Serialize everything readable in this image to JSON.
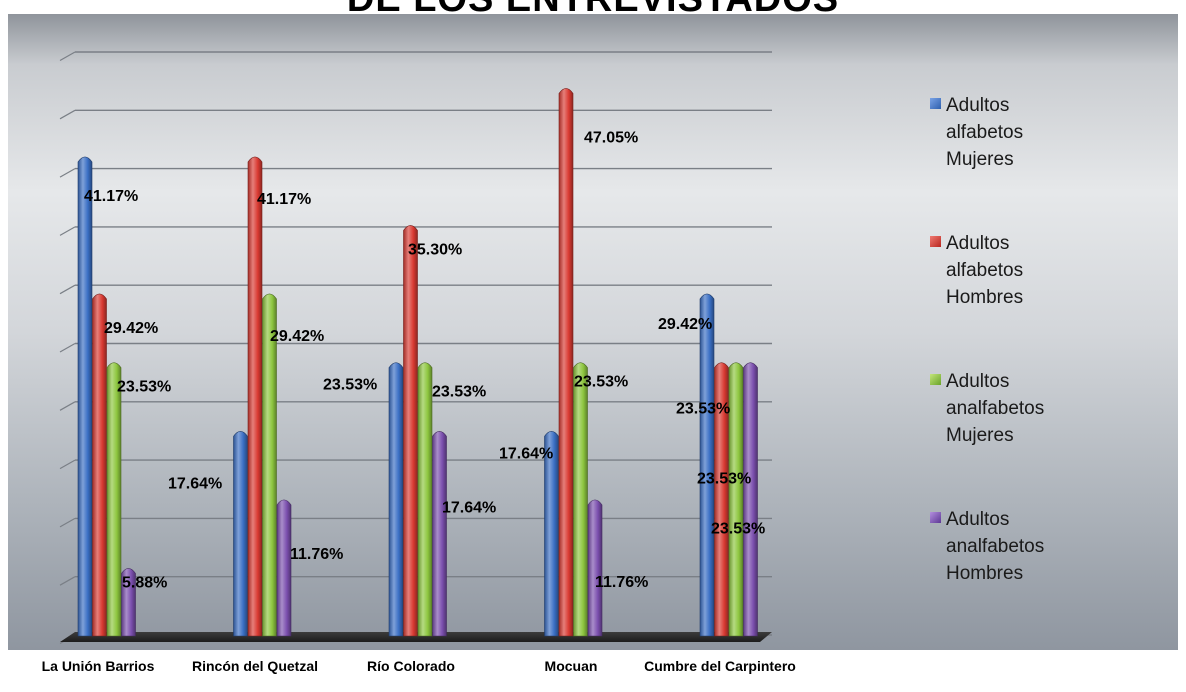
{
  "chart_data": {
    "type": "bar",
    "title": "DE LOS ENTREVISTADOS",
    "categories": [
      "La Unión Barrios",
      "Rincón del Quetzal",
      "Río Colorado",
      "Mocuan",
      "Cumbre del Carpintero"
    ],
    "series": [
      {
        "name": "Adultos alfabetos Mujeres",
        "values": [
          41.17,
          17.64,
          23.53,
          17.64,
          29.42
        ],
        "labels": [
          "41.17%",
          "17.64%",
          "23.53%",
          "17.64%",
          "29.42%"
        ],
        "color": "#3a6fc4"
      },
      {
        "name": "Adultos alfabetos Hombres",
        "values": [
          29.42,
          41.17,
          35.3,
          47.05,
          23.53
        ],
        "labels": [
          "29.42%",
          "41.17%",
          "35.30%",
          "47.05%",
          "23.53%"
        ],
        "color": "#d93a32"
      },
      {
        "name": "Adultos analfabetos Mujeres",
        "values": [
          23.53,
          29.42,
          23.53,
          23.53,
          23.53
        ],
        "labels": [
          "23.53%",
          "29.42%",
          "23.53%",
          "23.53%",
          "23.53%"
        ],
        "color": "#8dc63f"
      },
      {
        "name": "Adultos analfabetos Hombres",
        "values": [
          5.88,
          11.76,
          17.64,
          11.76,
          23.53
        ],
        "labels": [
          "5.88%",
          "11.76%",
          "17.64%",
          "11.76%",
          "23.53%"
        ],
        "color": "#7b4fae"
      }
    ],
    "ylim": [
      0,
      50
    ],
    "grid": true,
    "legend": "right"
  },
  "legend": [
    {
      "lines": [
        "Adultos",
        "alfabetos",
        "Mujeres"
      ]
    },
    {
      "lines": [
        "Adultos",
        "alfabetos",
        "Hombres"
      ]
    },
    {
      "lines": [
        "Adultos",
        "analfabetos",
        "Mujeres"
      ]
    },
    {
      "lines": [
        "Adultos",
        "analfabetos",
        "Hombres"
      ]
    }
  ]
}
